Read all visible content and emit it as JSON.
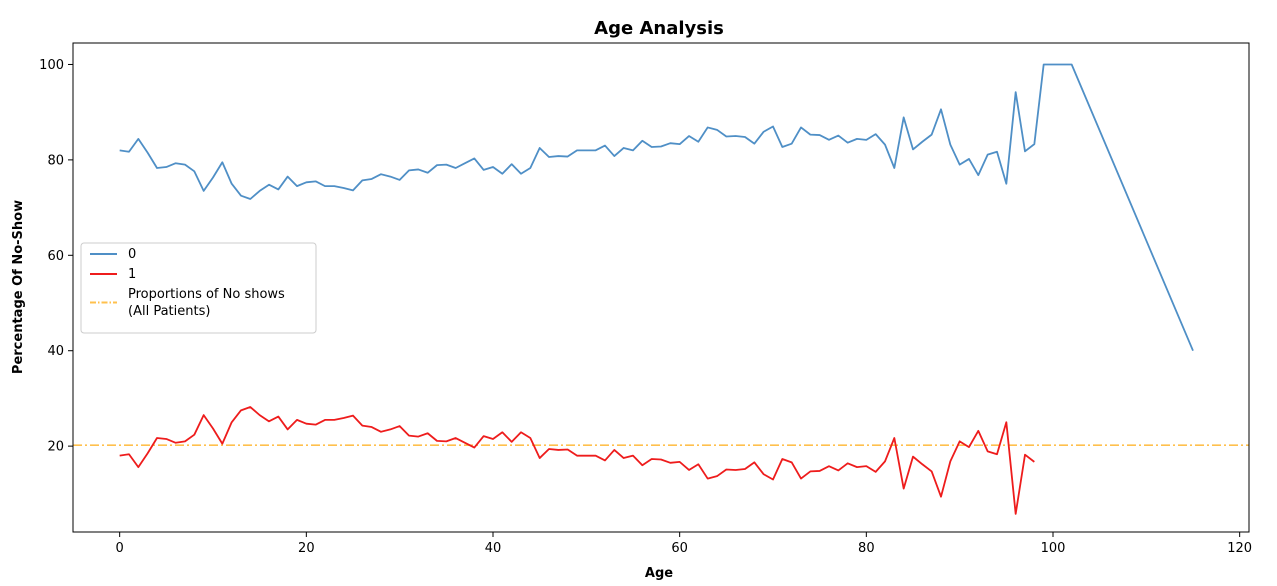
{
  "chart_data": {
    "type": "line",
    "title": "Age Analysis",
    "xlabel": "Age",
    "ylabel": "Percentage Of No-Show",
    "xlim": [
      -5,
      121
    ],
    "ylim": [
      2,
      104.5
    ],
    "xticks": [
      0,
      20,
      40,
      60,
      80,
      100,
      120
    ],
    "yticks": [
      20,
      40,
      60,
      80,
      100
    ],
    "grid": false,
    "legend_position": "center-left",
    "series": [
      {
        "name": "0",
        "color": "#4f8fc6",
        "x": [
          0,
          1,
          2,
          3,
          4,
          5,
          6,
          7,
          8,
          9,
          10,
          11,
          12,
          13,
          14,
          15,
          16,
          17,
          18,
          19,
          20,
          21,
          22,
          23,
          24,
          25,
          26,
          27,
          28,
          29,
          30,
          31,
          32,
          33,
          34,
          35,
          36,
          37,
          38,
          39,
          40,
          41,
          42,
          43,
          44,
          45,
          46,
          47,
          48,
          49,
          50,
          51,
          52,
          53,
          54,
          55,
          56,
          57,
          58,
          59,
          60,
          61,
          62,
          63,
          64,
          65,
          66,
          67,
          68,
          69,
          70,
          71,
          72,
          73,
          74,
          75,
          76,
          77,
          78,
          79,
          80,
          81,
          82,
          83,
          84,
          85,
          86,
          87,
          88,
          89,
          90,
          91,
          92,
          93,
          94,
          95,
          96,
          97,
          98,
          99,
          100,
          101,
          102,
          115
        ],
        "y": [
          82,
          81.7,
          84.4,
          81.5,
          78.3,
          78.5,
          79.3,
          79,
          77.6,
          73.5,
          76.3,
          79.5,
          75,
          72.5,
          71.8,
          73.5,
          74.8,
          73.8,
          76.5,
          74.5,
          75.3,
          75.5,
          74.5,
          74.5,
          74.1,
          73.6,
          75.7,
          76,
          77,
          76.5,
          75.8,
          77.8,
          78,
          77.3,
          78.9,
          79,
          78.3,
          79.3,
          80.3,
          77.9,
          78.5,
          77.1,
          79.1,
          77.1,
          78.3,
          82.5,
          80.6,
          80.8,
          80.7,
          82,
          82,
          82,
          83,
          80.8,
          82.5,
          82,
          84,
          82.7,
          82.8,
          83.5,
          83.3,
          85,
          83.8,
          86.8,
          86.3,
          84.9,
          85,
          84.8,
          83.4,
          85.9,
          87,
          82.7,
          83.4,
          86.8,
          85.3,
          85.2,
          84.2,
          85.1,
          83.6,
          84.4,
          84.2,
          85.4,
          83.2,
          78.3,
          88.9,
          82.2,
          83.8,
          85.3,
          90.6,
          83.2,
          79,
          80.2,
          76.8,
          81.1,
          81.7,
          75,
          94.2,
          81.8,
          83.3,
          100,
          100,
          100,
          100,
          40
        ]
      },
      {
        "name": "1",
        "color": "#ee1c1c",
        "x": [
          0,
          1,
          2,
          3,
          4,
          5,
          6,
          7,
          8,
          9,
          10,
          11,
          12,
          13,
          14,
          15,
          16,
          17,
          18,
          19,
          20,
          21,
          22,
          23,
          24,
          25,
          26,
          27,
          28,
          29,
          30,
          31,
          32,
          33,
          34,
          35,
          36,
          37,
          38,
          39,
          40,
          41,
          42,
          43,
          44,
          45,
          46,
          47,
          48,
          49,
          50,
          51,
          52,
          53,
          54,
          55,
          56,
          57,
          58,
          59,
          60,
          61,
          62,
          63,
          64,
          65,
          66,
          67,
          68,
          69,
          70,
          71,
          72,
          73,
          74,
          75,
          76,
          77,
          78,
          79,
          80,
          81,
          82,
          83,
          84,
          85,
          86,
          87,
          88,
          89,
          90,
          91,
          92,
          93,
          94,
          95,
          96,
          97,
          98
        ],
        "y": [
          18,
          18.3,
          15.6,
          18.5,
          21.7,
          21.5,
          20.7,
          21,
          22.4,
          26.5,
          23.7,
          20.5,
          25,
          27.5,
          28.2,
          26.5,
          25.2,
          26.2,
          23.5,
          25.5,
          24.7,
          24.5,
          25.5,
          25.5,
          25.9,
          26.4,
          24.3,
          24,
          23,
          23.5,
          24.2,
          22.2,
          22,
          22.7,
          21.1,
          21,
          21.7,
          20.7,
          19.7,
          22.1,
          21.5,
          22.9,
          20.9,
          22.9,
          21.7,
          17.5,
          19.4,
          19.2,
          19.3,
          18,
          18,
          18,
          17,
          19.2,
          17.5,
          18,
          16,
          17.3,
          17.2,
          16.5,
          16.7,
          15,
          16.2,
          13.2,
          13.7,
          15.1,
          15,
          15.2,
          16.6,
          14.1,
          13,
          17.3,
          16.6,
          13.2,
          14.7,
          14.8,
          15.8,
          14.9,
          16.4,
          15.6,
          15.8,
          14.6,
          16.8,
          21.7,
          11.1,
          17.8,
          16.2,
          14.7,
          9.4,
          16.8,
          21,
          19.8,
          23.2,
          18.9,
          18.3,
          25,
          5.8,
          18.2,
          16.7
        ]
      }
    ],
    "reference_line": {
      "label": "Proportions of No shows\n(All Patients)",
      "y": 20.2,
      "color": "#ffc04d",
      "style": "dash-dot"
    }
  }
}
